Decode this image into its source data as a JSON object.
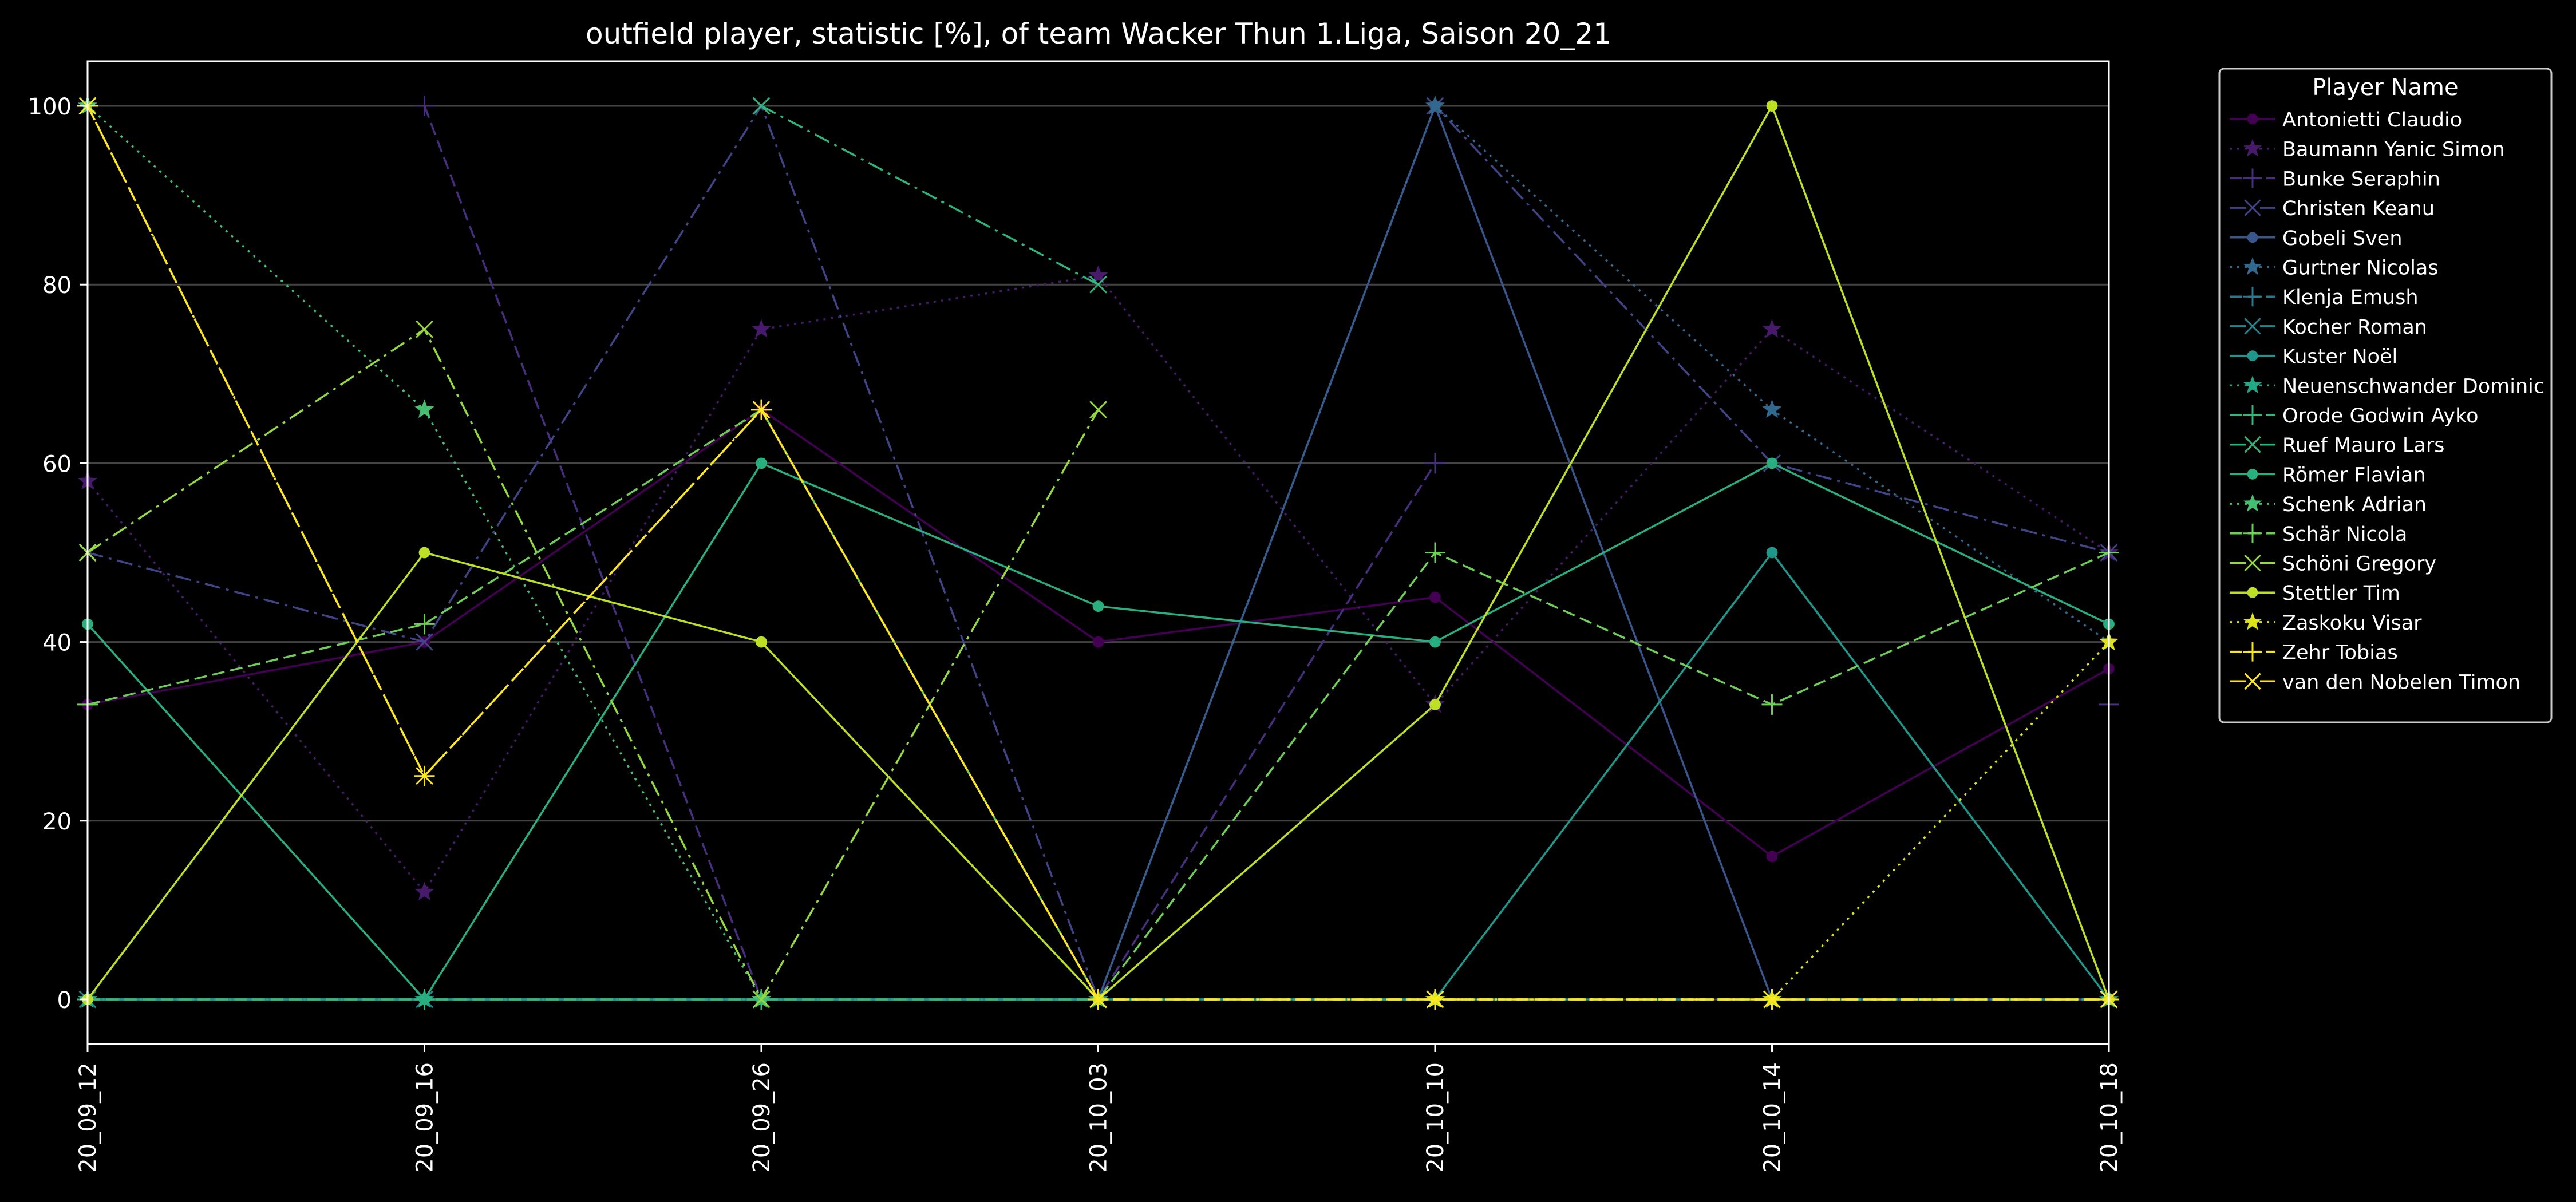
{
  "chart_data": {
    "type": "line",
    "title": "outfield player, statistic [%], of team Wacker Thun 1.Liga, Saison 20_21",
    "xlabel": "",
    "ylabel": "",
    "ylim": [
      -5,
      105
    ],
    "yticks": [
      0,
      20,
      40,
      60,
      80,
      100
    ],
    "grid": "horizontal",
    "background": "#000000",
    "legend": {
      "title": "Player Name",
      "placement": "outside-top-right"
    },
    "categories": [
      "20_09_12",
      "20_09_16",
      "20_09_26",
      "20_10_03",
      "20_10_10",
      "20_10_14",
      "20_10_18"
    ],
    "series": [
      {
        "name": "Antonietti Claudio",
        "color": "#440154",
        "linestyle": "solid",
        "marker": "circle",
        "values": [
          33,
          40,
          66,
          40,
          45,
          16,
          37
        ]
      },
      {
        "name": "Baumann Yanic Simon",
        "color": "#481a6c",
        "linestyle": "dotted",
        "marker": "star",
        "values": [
          58,
          12,
          75,
          81,
          33,
          75,
          50
        ]
      },
      {
        "name": "Bunke Seraphin",
        "color": "#472f7d",
        "linestyle": "dashed",
        "marker": "plus",
        "values": [
          null,
          100,
          0,
          0,
          60,
          null,
          33
        ]
      },
      {
        "name": "Christen Keanu",
        "color": "#414487",
        "linestyle": "dashdot",
        "marker": "x",
        "values": [
          50,
          40,
          100,
          0,
          100,
          60,
          50
        ]
      },
      {
        "name": "Gobeli Sven",
        "color": "#39568c",
        "linestyle": "solid",
        "marker": "circle",
        "values": [
          0,
          0,
          0,
          0,
          100,
          0,
          0
        ]
      },
      {
        "name": "Gurtner Nicolas",
        "color": "#31688e",
        "linestyle": "dotted",
        "marker": "star",
        "values": [
          0,
          0,
          0,
          0,
          100,
          66,
          40
        ]
      },
      {
        "name": "Klenja Emush",
        "color": "#2a788e",
        "linestyle": "dashed",
        "marker": "plus",
        "values": [
          0,
          0,
          0,
          0,
          0,
          0,
          0
        ]
      },
      {
        "name": "Kocher Roman",
        "color": "#23888e",
        "linestyle": "dashdot",
        "marker": "x",
        "values": [
          0,
          0,
          0,
          0,
          0,
          0,
          0
        ]
      },
      {
        "name": "Kuster Noël",
        "color": "#1f988b",
        "linestyle": "solid",
        "marker": "circle",
        "values": [
          0,
          0,
          0,
          0,
          0,
          50,
          0
        ]
      },
      {
        "name": "Neuenschwander Dominic",
        "color": "#22a884",
        "linestyle": "dotted",
        "marker": "star",
        "values": [
          0,
          0,
          0,
          0,
          0,
          0,
          0
        ]
      },
      {
        "name": "Orode Godwin Ayko",
        "color": "#35b779",
        "linestyle": "dashed",
        "marker": "plus",
        "values": [
          0,
          0,
          0,
          0,
          0,
          0,
          0
        ]
      },
      {
        "name": "Ruef Mauro Lars",
        "color": "#2fb47c",
        "linestyle": "dashdot",
        "marker": "x",
        "values": [
          null,
          null,
          100,
          80,
          null,
          null,
          null
        ]
      },
      {
        "name": "Römer Flavian",
        "color": "#29af7f",
        "linestyle": "solid",
        "marker": "circle",
        "values": [
          42,
          0,
          60,
          44,
          40,
          60,
          42
        ]
      },
      {
        "name": "Schenk Adrian",
        "color": "#44bf70",
        "linestyle": "dotted",
        "marker": "star",
        "values": [
          100,
          66,
          0,
          null,
          null,
          null,
          null
        ]
      },
      {
        "name": "Schär Nicola",
        "color": "#6ece58",
        "linestyle": "dashed",
        "marker": "plus",
        "values": [
          33,
          42,
          66,
          0,
          50,
          33,
          50
        ]
      },
      {
        "name": "Schöni Gregory",
        "color": "#95d840",
        "linestyle": "dashdot",
        "marker": "x",
        "values": [
          50,
          75,
          0,
          66,
          null,
          null,
          null
        ]
      },
      {
        "name": "Stettler Tim",
        "color": "#bddf26",
        "linestyle": "solid",
        "marker": "circle",
        "values": [
          0,
          50,
          40,
          0,
          33,
          100,
          0
        ]
      },
      {
        "name": "Zaskoku Visar",
        "color": "#dde318",
        "linestyle": "dotted",
        "marker": "star",
        "values": [
          null,
          null,
          null,
          null,
          0,
          0,
          40
        ]
      },
      {
        "name": "Zehr Tobias",
        "color": "#f5e61f",
        "linestyle": "dashed",
        "marker": "plus",
        "values": [
          100,
          25,
          66,
          0,
          0,
          0,
          0
        ]
      },
      {
        "name": "van den Nobelen Timon",
        "color": "#fde725",
        "linestyle": "dashdot",
        "marker": "x",
        "values": [
          100,
          25,
          66,
          0,
          0,
          0,
          0
        ]
      }
    ]
  }
}
